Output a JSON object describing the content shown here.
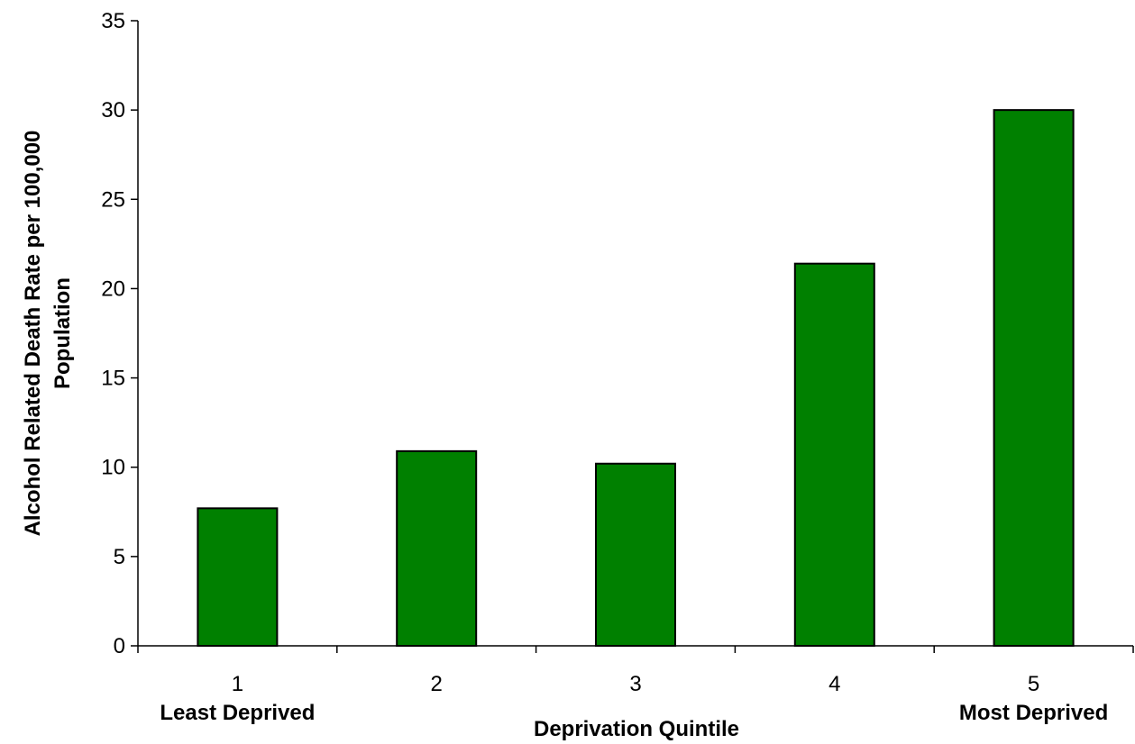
{
  "chart_data": {
    "type": "bar",
    "categories": [
      "1",
      "2",
      "3",
      "4",
      "5"
    ],
    "values": [
      7.7,
      10.9,
      10.2,
      21.4,
      30.0
    ],
    "category_sublabels": [
      "Least Deprived",
      "",
      "",
      "",
      "Most Deprived"
    ],
    "xlabel": "Deprivation Quintile",
    "ylabel_lines": [
      "Alcohol Related Death Rate per 100,000",
      "Population"
    ],
    "ylim": [
      0,
      35
    ],
    "yticks": [
      0,
      5,
      10,
      15,
      20,
      25,
      30,
      35
    ],
    "bar_color": "#008000",
    "grid": false,
    "legend": "none"
  }
}
